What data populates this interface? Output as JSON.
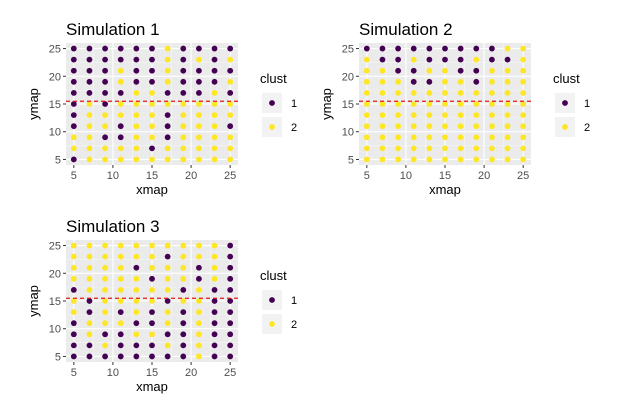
{
  "colors": {
    "panel_bg": "#ebebeb",
    "grid_major": "#ffffff",
    "cluster_1": "#440154",
    "cluster_2": "#fde725",
    "hline": "#e41a1c",
    "legend_key_bg": "#f2f2f2"
  },
  "chart_data": [
    {
      "type": "scatter",
      "title": "Simulation 1",
      "xlabel": "xmap",
      "ylabel": "ymap",
      "xlim": [
        4,
        26
      ],
      "ylim": [
        4,
        26
      ],
      "xticks": [
        5,
        10,
        15,
        20,
        25
      ],
      "yticks": [
        5,
        10,
        15,
        20,
        25
      ],
      "grid": true,
      "hline": {
        "y": 15.5,
        "style": "dashed"
      },
      "legend": {
        "title": "clust",
        "placement": "right",
        "entries": [
          "1",
          "2"
        ]
      },
      "x": [
        5,
        7,
        9,
        11,
        13,
        15,
        17,
        19,
        21,
        23,
        25
      ],
      "y": [
        25,
        23,
        21,
        19,
        17,
        15,
        13,
        11,
        9,
        7,
        5
      ],
      "rows": [
        "11111121111",
        "11111121212",
        "11121121111",
        "11121121112",
        "11112211121",
        "12122222222",
        "12222212222",
        "12212212221",
        "22112212222",
        "22222122222",
        "12222222222"
      ]
    },
    {
      "type": "scatter",
      "title": "Simulation 2",
      "xlabel": "xmap",
      "ylabel": "ymap",
      "xlim": [
        4,
        26
      ],
      "ylim": [
        4,
        26
      ],
      "xticks": [
        5,
        10,
        15,
        20,
        25
      ],
      "yticks": [
        5,
        10,
        15,
        20,
        25
      ],
      "grid": true,
      "hline": {
        "y": 15.5,
        "style": "dashed"
      },
      "legend": {
        "title": "clust",
        "placement": "right",
        "entries": [
          "1",
          "2"
        ]
      },
      "x": [
        5,
        7,
        9,
        11,
        13,
        15,
        17,
        19,
        21,
        23,
        25
      ],
      "y": [
        25,
        23,
        21,
        19,
        17,
        15,
        13,
        11,
        9,
        7,
        5
      ],
      "rows": [
        "11111111122",
        "21121112112",
        "22112211222",
        "22211221222",
        "22222222222",
        "22222222222",
        "22222222222",
        "22222222222",
        "22222222222",
        "22222222222",
        "22222222222"
      ]
    },
    {
      "type": "scatter",
      "title": "Simulation 3",
      "xlabel": "xmap",
      "ylabel": "ymap",
      "xlim": [
        4,
        26
      ],
      "ylim": [
        4,
        26
      ],
      "xticks": [
        5,
        10,
        15,
        20,
        25
      ],
      "yticks": [
        5,
        10,
        15,
        20,
        25
      ],
      "grid": true,
      "hline": {
        "y": 15.5,
        "style": "dashed"
      },
      "legend": {
        "title": "clust",
        "placement": "right",
        "entries": [
          "1",
          "2"
        ]
      },
      "x": [
        5,
        7,
        9,
        11,
        13,
        15,
        17,
        19,
        21,
        23,
        25
      ],
      "y": [
        25,
        23,
        21,
        19,
        17,
        15,
        13,
        11,
        9,
        7,
        5
      ],
      "rows": [
        "22222222221",
        "22222212221",
        "22221222121",
        "22222122121",
        "12222221211",
        "21222212211",
        "21212121211",
        "12221121211",
        "12112211211",
        "11211121211",
        "11111111211"
      ]
    }
  ]
}
